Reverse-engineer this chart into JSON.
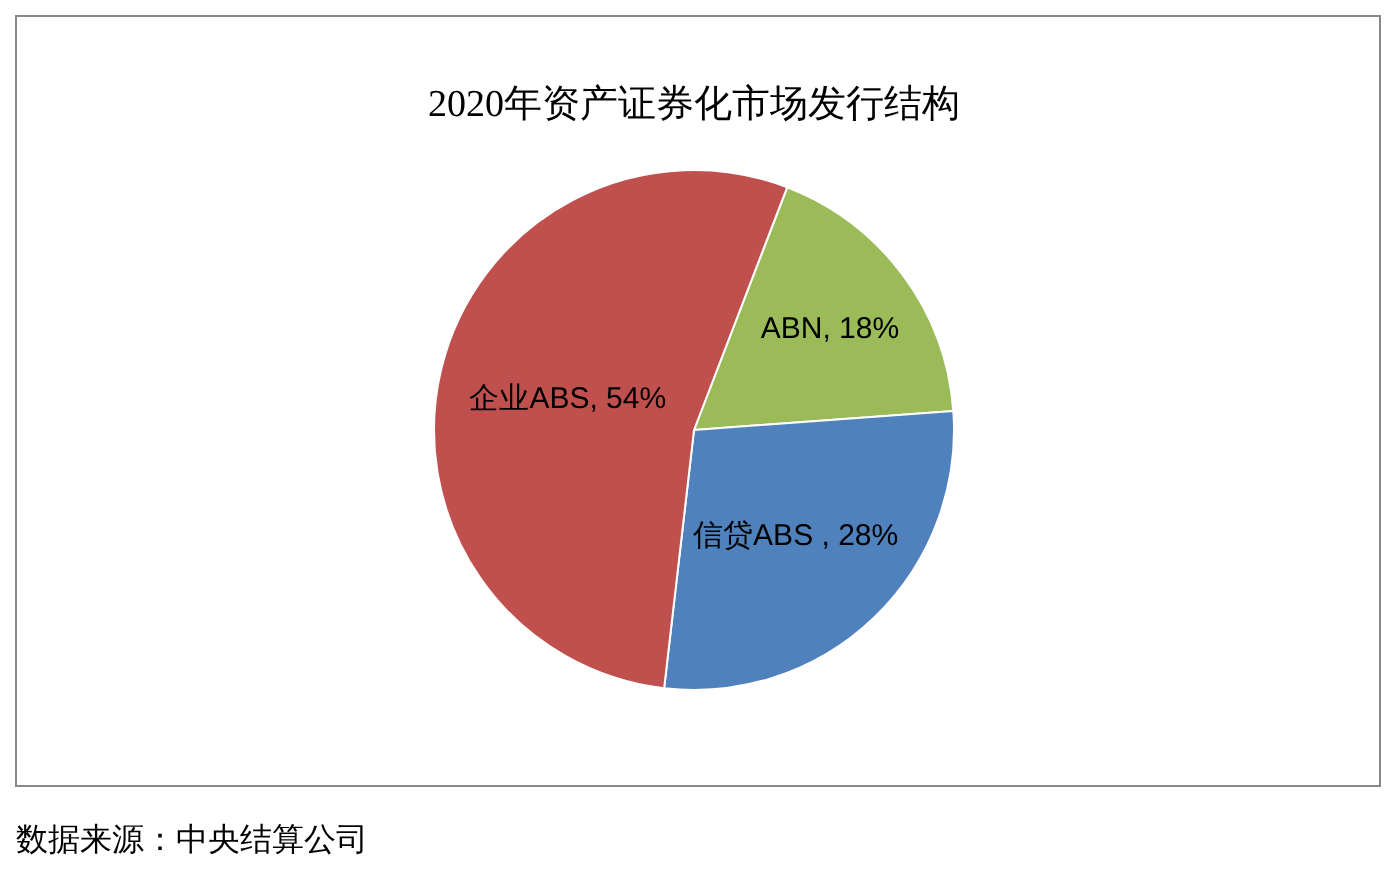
{
  "chart_data": {
    "type": "pie",
    "title": "2020年资产证券化市场发行结构",
    "categories": [
      "ABN",
      "信贷ABS ",
      "企业ABS"
    ],
    "values": [
      18,
      28,
      54
    ],
    "value_labels": [
      "18%",
      "28%",
      "54%"
    ],
    "colors": [
      "#9bbb59",
      "#4f81bd",
      "#c0504d"
    ],
    "legend": false,
    "annotations": [
      "数据来源：中央结算公司"
    ]
  }
}
